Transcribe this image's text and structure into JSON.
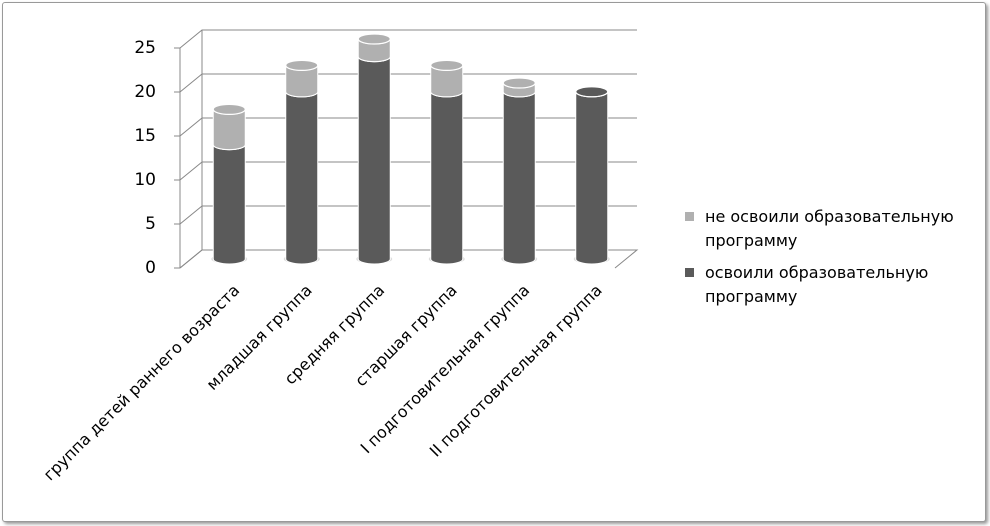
{
  "chart_data": {
    "type": "bar",
    "categories": [
      "группа детей раннего возраста",
      "младшая группа",
      "средняя группа",
      "старшая группа",
      "I подготовительная группа",
      "II подготовительная группа"
    ],
    "series": [
      {
        "name": "освоили образовательную программу",
        "color": "#5a5a5a",
        "values": [
          13,
          19,
          23,
          19,
          19,
          19
        ]
      },
      {
        "name": "не освоили образовательную программу",
        "color": "#b0b0b0",
        "values": [
          4,
          3,
          2,
          3,
          1,
          0
        ]
      }
    ],
    "stacked": true,
    "ylim": [
      0,
      25
    ],
    "yticks": [
      0,
      5,
      10,
      15,
      20,
      25
    ],
    "grid": true,
    "legend": "right"
  }
}
